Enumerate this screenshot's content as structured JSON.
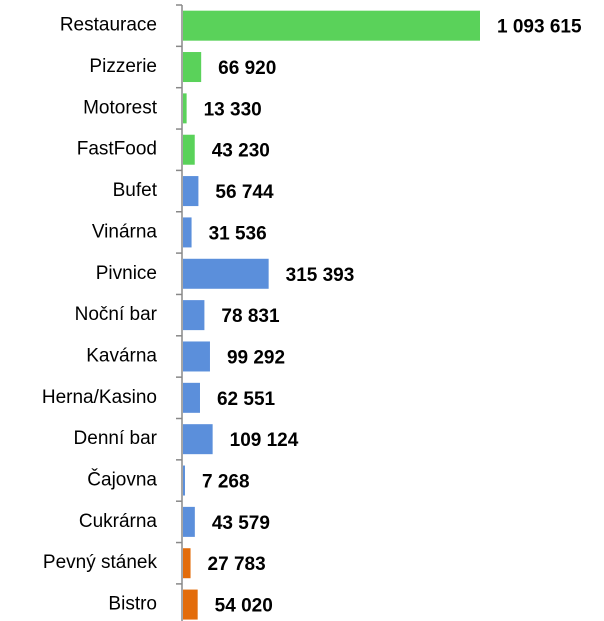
{
  "chart_data": {
    "type": "barh",
    "categories": [
      "Restaurace",
      "Pizzerie",
      "Motorest",
      "FastFood",
      "Bufet",
      "Vinárna",
      "Pivnice",
      "Noční bar",
      "Kavárna",
      "Herna/Kasino",
      "Denní bar",
      "Čajovna",
      "Cukrárna",
      "Pevný stánek",
      "Bistro"
    ],
    "values": [
      1093615,
      66920,
      13330,
      43230,
      56744,
      31536,
      315393,
      78831,
      99292,
      62551,
      109124,
      7268,
      43579,
      27783,
      54020
    ],
    "value_labels": [
      "1 093 615",
      "66 920",
      "13 330",
      "43 230",
      "56 744",
      "31 536",
      "315 393",
      "78 831",
      "99 292",
      "62 551",
      "109 124",
      "7 268",
      "43 579",
      "27 783",
      "54 020"
    ],
    "colors": [
      "#5ad25a",
      "#5ad25a",
      "#5ad25a",
      "#5ad25a",
      "#5b8fdb",
      "#5b8fdb",
      "#5b8fdb",
      "#5b8fdb",
      "#5b8fdb",
      "#5b8fdb",
      "#5b8fdb",
      "#5b8fdb",
      "#5b8fdb",
      "#e36c0a",
      "#e36c0a"
    ]
  }
}
